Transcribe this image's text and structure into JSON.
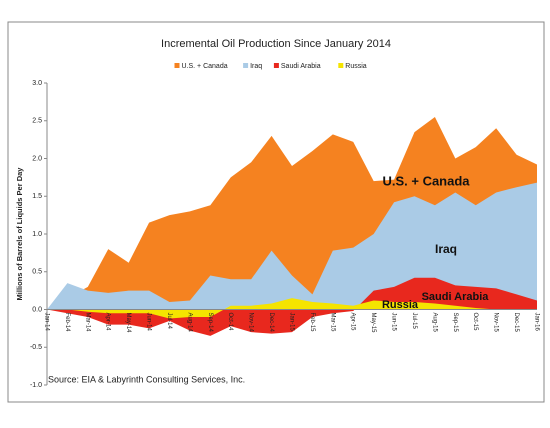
{
  "chart_data": {
    "type": "area",
    "title": "Incremental Oil Production Since January 2014",
    "y_label": "Millions of Barrels of Liquids Per Day",
    "source": "Source: EIA & Labyrinth Consulting Services, Inc.",
    "categories": [
      "Jan-14",
      "Feb-14",
      "Mar-14",
      "Apr-14",
      "May-14",
      "Jun-14",
      "Jul-14",
      "Aug-14",
      "Sep-14",
      "Oct-14",
      "Nov-14",
      "Dec-14",
      "Jan-15",
      "Feb-15",
      "Mar-15",
      "Apr-15",
      "May-15",
      "Jun-15",
      "Jul-15",
      "Aug-15",
      "Sep-15",
      "Oct-15",
      "Nov-15",
      "Dec-15",
      "Jan-16"
    ],
    "series": [
      {
        "name": "U.S. + Canada",
        "color": "#f58220",
        "values": [
          0,
          0.15,
          0.3,
          0.8,
          0.62,
          1.15,
          1.25,
          1.3,
          1.38,
          1.75,
          1.95,
          2.3,
          1.9,
          2.1,
          2.32,
          2.22,
          1.7,
          1.72,
          2.35,
          2.55,
          2.0,
          2.15,
          2.4,
          2.05,
          1.92
        ]
      },
      {
        "name": "Iraq",
        "color": "#aacbe6",
        "values": [
          0,
          0.35,
          0.25,
          0.22,
          0.25,
          0.25,
          0.1,
          0.12,
          0.45,
          0.4,
          0.4,
          0.78,
          0.45,
          0.2,
          0.78,
          0.82,
          1.0,
          1.42,
          1.5,
          1.38,
          1.55,
          1.38,
          1.55,
          1.62,
          1.68
        ]
      },
      {
        "name": "Saudi Arabia",
        "color": "#e8281e",
        "values": [
          0,
          -0.05,
          -0.1,
          -0.2,
          -0.2,
          -0.25,
          -0.15,
          -0.28,
          -0.35,
          -0.22,
          -0.3,
          -0.32,
          -0.3,
          -0.1,
          -0.05,
          -0.02,
          0.25,
          0.3,
          0.42,
          0.42,
          0.32,
          0.3,
          0.28,
          0.2,
          0.12
        ]
      },
      {
        "name": "Russia",
        "color": "#f5e400",
        "values": [
          0,
          0,
          -0.03,
          -0.05,
          -0.05,
          -0.05,
          -0.12,
          -0.1,
          -0.1,
          0.05,
          0.05,
          0.08,
          0.15,
          0.1,
          0.08,
          0.05,
          0.12,
          0.1,
          0.1,
          0.08,
          0.05,
          0.02,
          0,
          0,
          0
        ]
      }
    ],
    "ylim": [
      -1,
      3
    ],
    "yticks": [
      {
        "value": -1,
        "label": "-1.0"
      },
      {
        "value": -0.5,
        "label": "-0.5"
      },
      {
        "value": 0,
        "label": "0.0"
      },
      {
        "value": 0.5,
        "label": "0.5"
      },
      {
        "value": 1,
        "label": "1.0"
      },
      {
        "value": 1.5,
        "label": "1.5"
      },
      {
        "value": 2,
        "label": "2.0"
      },
      {
        "value": 2.5,
        "label": "2.5"
      },
      {
        "value": 3,
        "label": "3.0"
      }
    ],
    "legend": "top",
    "grid": false
  }
}
